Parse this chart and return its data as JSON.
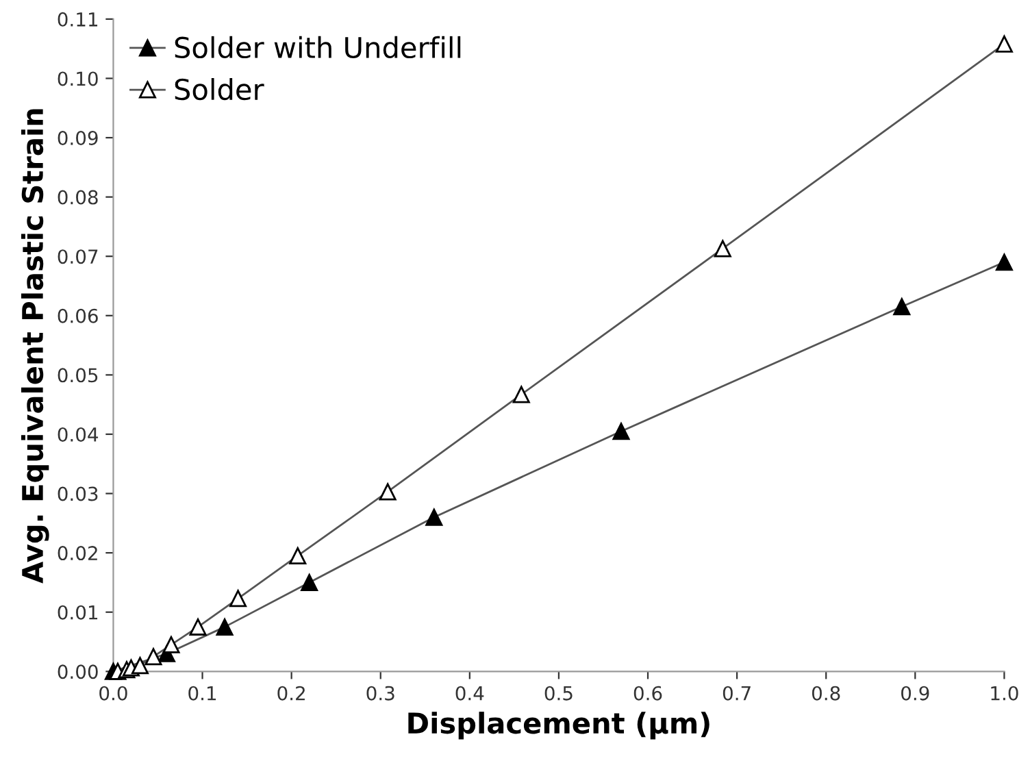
{
  "chart_data": {
    "type": "line",
    "xlabel": "Displacement (µm)",
    "ylabel": "Avg. Equivalent Plastic Strain",
    "xlim": [
      0,
      1.0
    ],
    "ylim": [
      0,
      0.11
    ],
    "xticks": [
      {
        "value": 0,
        "label": "0.0"
      },
      0.1,
      0.2,
      0.3,
      0.4,
      0.5,
      0.6,
      0.7,
      0.8,
      0.9,
      {
        "value": 1.0,
        "label": "1.0"
      }
    ],
    "yticks": [
      {
        "value": 0,
        "label": "0.00"
      },
      0.01,
      0.02,
      0.03,
      0.04,
      0.05,
      0.06,
      0.07,
      0.08,
      0.09,
      {
        "value": 0.1,
        "label": "0.10"
      },
      0.11
    ],
    "grid": false,
    "legend": "top left",
    "line_style": "solid",
    "series": [
      {
        "name": "Solder with Underfill",
        "color": "#000000",
        "marker": "triangle",
        "x": [
          0,
          0.06,
          0.125,
          0.22,
          0.36,
          0.57,
          0.885,
          1.0
        ],
        "values": [
          0,
          0.003,
          0.0075,
          0.015,
          0.026,
          0.0405,
          0.0615,
          0.069
        ]
      },
      {
        "name": "Solder",
        "color": "#000000",
        "marker": "triangle",
        "x": [
          0.005,
          0.015,
          0.02,
          0.03,
          0.045,
          0.065,
          0.095,
          0.14,
          0.207,
          0.308,
          0.458,
          0.684,
          1.0
        ],
        "values": [
          0,
          0.0003,
          0.0006,
          0.001,
          0.0025,
          0.0045,
          0.0075,
          0.0123,
          0.0195,
          0.0303,
          0.0467,
          0.0713,
          0.1058
        ]
      }
    ]
  }
}
